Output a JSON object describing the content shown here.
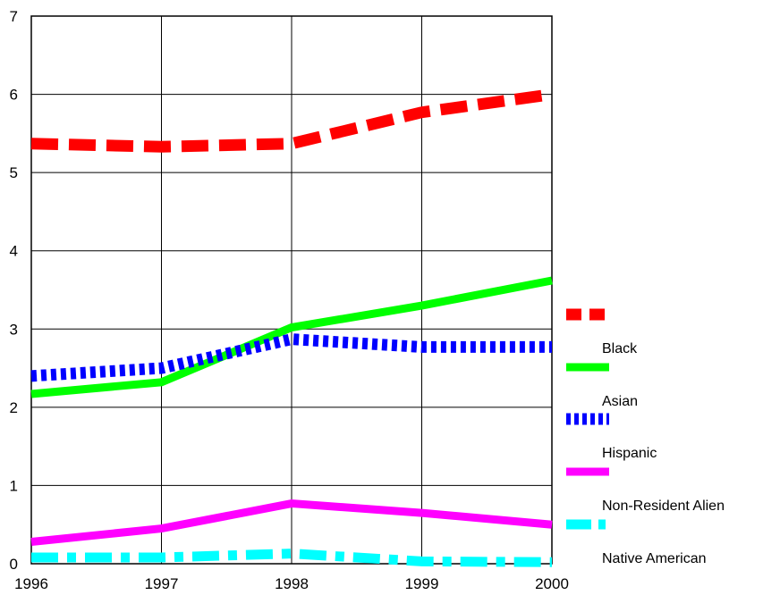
{
  "chart_data": {
    "type": "line",
    "x": [
      "1996",
      "1997",
      "1998",
      "1999",
      "2000"
    ],
    "ylim": [
      0,
      7
    ],
    "y_ticks": [
      "0",
      "1",
      "2",
      "3",
      "4",
      "5",
      "6",
      "7"
    ],
    "grid": true,
    "legend_position": "right",
    "series": [
      {
        "name": "Black",
        "values": [
          5.37,
          5.33,
          5.37,
          5.77,
          6.0
        ],
        "color": "#ff0000",
        "style": "dashed"
      },
      {
        "name": "Asian",
        "values": [
          2.17,
          2.32,
          3.02,
          3.3,
          3.62
        ],
        "color": "#00ff00",
        "style": "solid"
      },
      {
        "name": "Hispanic",
        "values": [
          2.4,
          2.5,
          2.87,
          2.77,
          2.77
        ],
        "color": "#0000ff",
        "style": "dotted"
      },
      {
        "name": "Non-Resident Alien",
        "values": [
          0.28,
          0.45,
          0.77,
          0.65,
          0.5
        ],
        "color": "#ff00ff",
        "style": "solid"
      },
      {
        "name": "Native American",
        "values": [
          0.08,
          0.08,
          0.13,
          0.03,
          0.02
        ],
        "color": "#00ffff",
        "style": "dashdot"
      }
    ]
  }
}
